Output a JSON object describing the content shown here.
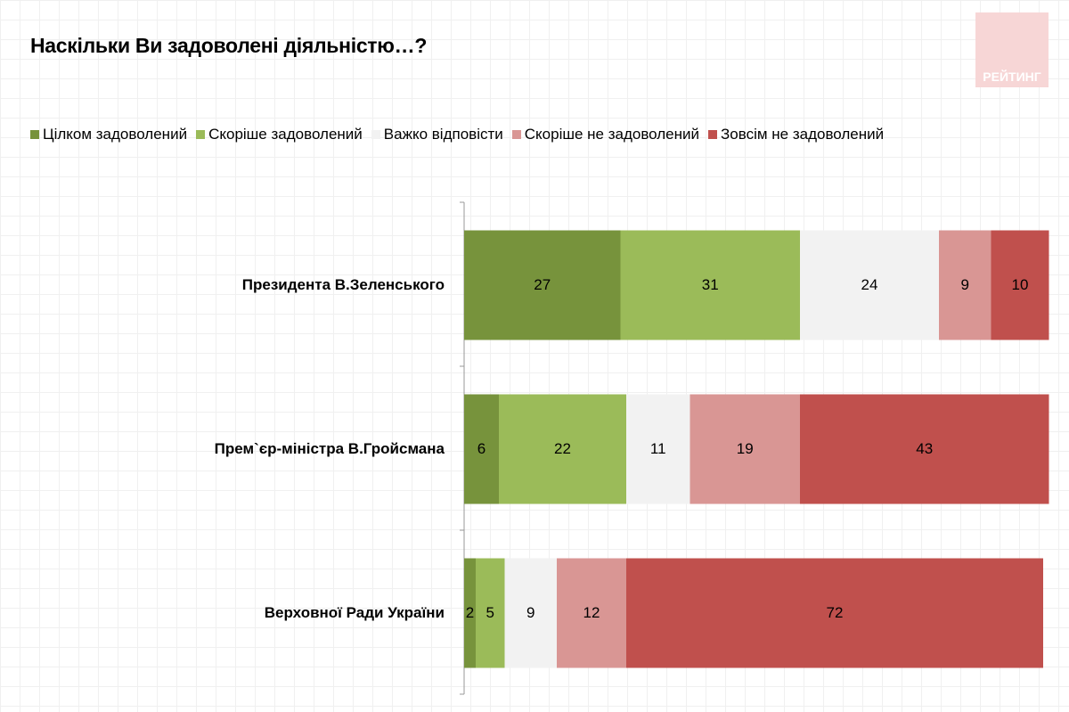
{
  "chart_data": {
    "type": "bar",
    "orientation": "horizontal-stacked",
    "title": "Наскільки Ви задоволені діяльністю…?",
    "categories": [
      "Президента В.Зеленського",
      "Прем`єр-міністра В.Гройсмана",
      "Верховної Ради України"
    ],
    "series": [
      {
        "name": "Цілком задоволений",
        "color": "#77933c",
        "values": [
          27,
          6,
          2
        ]
      },
      {
        "name": "Скоріше задоволений",
        "color": "#9bbb59",
        "values": [
          31,
          22,
          5
        ]
      },
      {
        "name": "Важко відповісти",
        "color": "#f2f2f2",
        "values": [
          24,
          11,
          9
        ]
      },
      {
        "name": "Скоріше не задоволений",
        "color": "#d99694",
        "values": [
          9,
          19,
          12
        ]
      },
      {
        "name": "Зовсім не задоволений",
        "color": "#c0504d",
        "values": [
          10,
          43,
          72
        ]
      }
    ],
    "legend_position": "top",
    "data_labels": true
  },
  "logo": {
    "text": "РЕЙТИНГ"
  }
}
